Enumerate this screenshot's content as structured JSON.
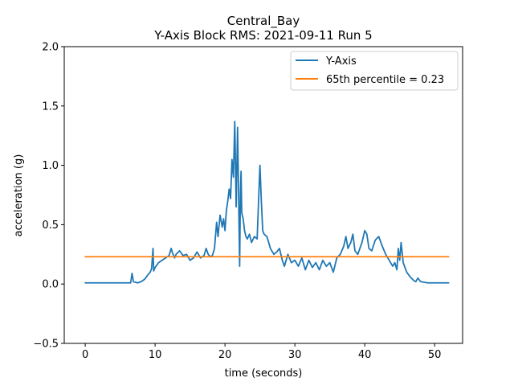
{
  "chart_data": {
    "type": "line",
    "title": "Central_Bay",
    "subtitle": "Y-Axis Block RMS: 2021-09-11 Run 5",
    "xlabel": "time (seconds)",
    "ylabel": "acceleration (g)",
    "xlim": [
      -3,
      54
    ],
    "ylim": [
      -0.5,
      2.0
    ],
    "xticks": [
      0,
      10,
      20,
      30,
      40,
      50
    ],
    "yticks": [
      -0.5,
      0.0,
      0.5,
      1.0,
      1.5,
      2.0
    ],
    "ytick_labels": [
      "−0.5",
      "0.0",
      "0.5",
      "1.0",
      "1.5",
      "2.0"
    ],
    "xtick_labels": [
      "0",
      "10",
      "20",
      "30",
      "40",
      "50"
    ],
    "legend_position": "top-right",
    "grid": false,
    "series": [
      {
        "name": "Y-Axis",
        "color": "#1f77b4",
        "x": [
          0,
          2,
          4,
          6,
          6.5,
          6.7,
          6.9,
          7.5,
          8.0,
          8.5,
          9.0,
          9.3,
          9.5,
          9.7,
          9.8,
          10.0,
          10.5,
          11.0,
          11.5,
          12.0,
          12.3,
          12.5,
          12.8,
          13.0,
          13.5,
          14.0,
          14.5,
          15.0,
          15.5,
          16.0,
          16.5,
          17.0,
          17.3,
          17.6,
          17.9,
          18.2,
          18.5,
          18.8,
          19.0,
          19.3,
          19.6,
          19.8,
          20.0,
          20.2,
          20.4,
          20.6,
          20.8,
          21.0,
          21.2,
          21.4,
          21.6,
          21.8,
          22.0,
          22.1,
          22.2,
          22.3,
          22.4,
          22.6,
          22.8,
          23.0,
          23.2,
          23.5,
          23.8,
          24.2,
          24.6,
          25.0,
          25.2,
          25.4,
          25.6,
          26.0,
          26.5,
          27.0,
          27.4,
          27.8,
          28.2,
          28.5,
          29.0,
          29.5,
          30.0,
          30.5,
          31.0,
          31.5,
          32.0,
          32.5,
          33.0,
          33.5,
          34.0,
          34.5,
          35.0,
          35.5,
          36.0,
          36.5,
          37.0,
          37.3,
          37.6,
          38.0,
          38.3,
          38.6,
          39.0,
          39.3,
          39.6,
          40.0,
          40.3,
          40.6,
          41.0,
          41.5,
          42.0,
          42.5,
          43.0,
          43.5,
          44.0,
          44.3,
          44.6,
          44.8,
          45.0,
          45.2,
          45.5,
          46.0,
          46.5,
          47.0,
          47.3,
          47.6,
          48.0,
          49.0,
          50.0,
          52.0
        ],
        "y": [
          0.01,
          0.01,
          0.01,
          0.01,
          0.01,
          0.09,
          0.02,
          0.01,
          0.02,
          0.04,
          0.08,
          0.1,
          0.13,
          0.3,
          0.11,
          0.14,
          0.18,
          0.2,
          0.22,
          0.24,
          0.3,
          0.26,
          0.22,
          0.25,
          0.28,
          0.24,
          0.25,
          0.2,
          0.22,
          0.27,
          0.22,
          0.24,
          0.3,
          0.25,
          0.23,
          0.24,
          0.3,
          0.52,
          0.4,
          0.58,
          0.48,
          0.55,
          0.45,
          0.62,
          0.7,
          0.8,
          0.72,
          1.05,
          0.9,
          1.37,
          0.65,
          1.32,
          0.55,
          0.15,
          0.75,
          0.95,
          0.6,
          0.55,
          0.45,
          0.4,
          0.38,
          0.42,
          0.35,
          0.4,
          0.38,
          1.0,
          0.7,
          0.45,
          0.42,
          0.4,
          0.3,
          0.25,
          0.27,
          0.3,
          0.2,
          0.15,
          0.25,
          0.18,
          0.2,
          0.15,
          0.22,
          0.12,
          0.2,
          0.14,
          0.18,
          0.12,
          0.2,
          0.15,
          0.18,
          0.1,
          0.22,
          0.25,
          0.32,
          0.4,
          0.3,
          0.35,
          0.42,
          0.28,
          0.25,
          0.3,
          0.35,
          0.45,
          0.42,
          0.3,
          0.28,
          0.37,
          0.4,
          0.32,
          0.25,
          0.2,
          0.15,
          0.18,
          0.12,
          0.3,
          0.2,
          0.35,
          0.18,
          0.1,
          0.06,
          0.03,
          0.02,
          0.05,
          0.02,
          0.01,
          0.01,
          0.01
        ]
      },
      {
        "name": "65th percentile = 0.23",
        "color": "#ff7f0e",
        "x": [
          0,
          52
        ],
        "y": [
          0.23,
          0.23
        ]
      }
    ]
  }
}
